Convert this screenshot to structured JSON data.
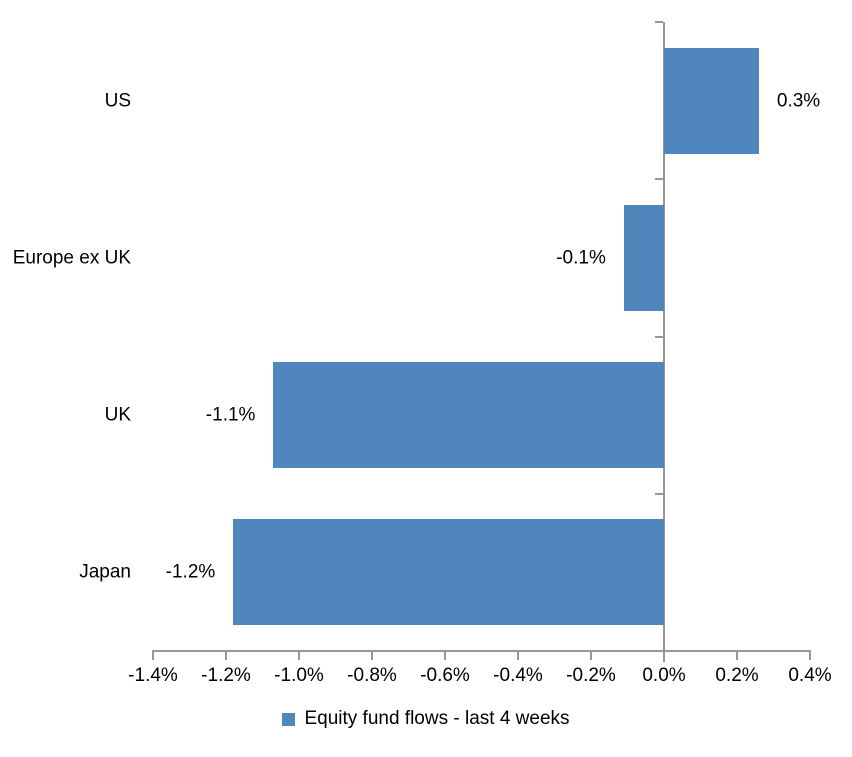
{
  "chart_data": {
    "type": "bar",
    "orientation": "horizontal",
    "title": "",
    "categories": [
      "US",
      "Europe ex UK",
      "UK",
      "Japan"
    ],
    "series": [
      {
        "name": "Equity fund flows - last 4 weeks",
        "values": [
          0.26,
          -0.11,
          -1.07,
          -1.18
        ],
        "data_labels": [
          "0.3%",
          "-0.1%",
          "-1.1%",
          "-1.2%"
        ]
      }
    ],
    "xlabel": "",
    "ylabel": "",
    "xlim": [
      -1.4,
      0.4
    ],
    "x_ticks": [
      -1.4,
      -1.2,
      -1.0,
      -0.8,
      -0.6,
      -0.4,
      -0.2,
      0.0,
      0.2,
      0.4
    ],
    "x_tick_labels": [
      "-1.4%",
      "-1.2%",
      "-1.0%",
      "-0.8%",
      "-0.6%",
      "-0.4%",
      "-0.2%",
      "0.0%",
      "0.2%",
      "0.4%"
    ],
    "grid": false,
    "legend_position": "bottom-center",
    "legend": [
      {
        "label": "Equity fund flows - last 4 weeks",
        "color": "#4f86bb"
      }
    ],
    "colors": {
      "bar": "#4f86bb",
      "axis": "#969696",
      "text": "#000000",
      "background": "#ffffff"
    }
  }
}
